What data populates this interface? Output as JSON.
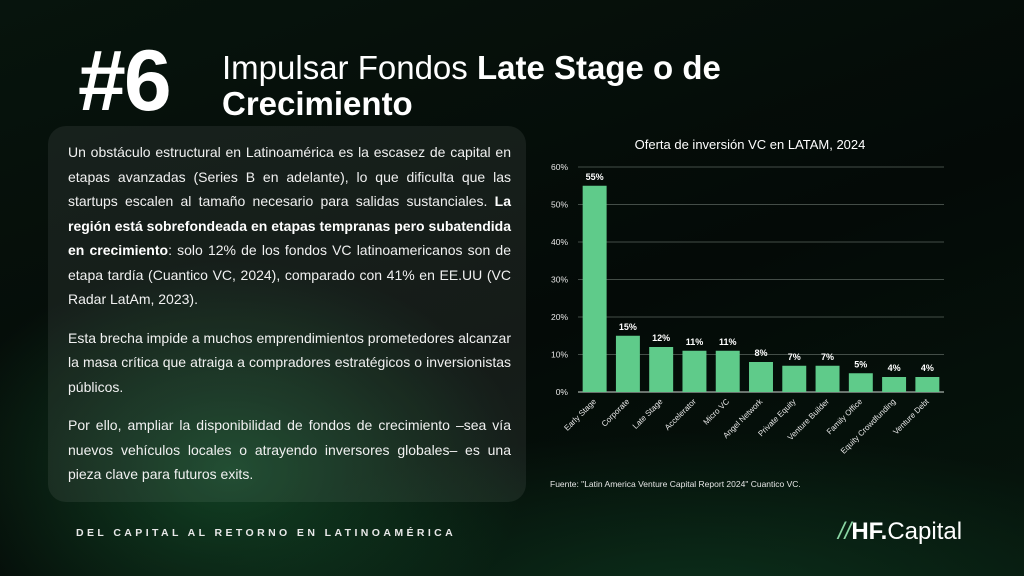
{
  "header": {
    "number": "#6",
    "title_regular": "Impulsar Fondos",
    "title_bold": "Late Stage o de Crecimiento"
  },
  "body": {
    "p1_a": "Un obstáculo estructural en Latinoamérica es la escasez de capital en etapas avanzadas (Series B en adelante), lo que dificulta que las startups escalen al tamaño necesario para salidas sustanciales.",
    "p1_bold": "La región está sobrefondeada en etapas tempranas pero subatendida en crecimiento",
    "p1_b": ": solo 12% de los fondos VC latinoamericanos son de etapa tardía (Cuantico VC, 2024), comparado con 41% en EE.UU (VC Radar LatAm, 2023).",
    "p2": "Esta brecha impide a muchos emprendimientos prometedores alcanzar la masa crítica que atraiga a compradores estratégicos o inversionistas públicos.",
    "p3": "Por ello, ampliar la disponibilidad de fondos de crecimiento –sea vía nuevos vehículos locales o atrayendo inversores globales– es una pieza clave para futuros exits."
  },
  "chart_data": {
    "type": "bar",
    "title": "Oferta de inversión VC en LATAM, 2024",
    "categories": [
      "Early Stage",
      "Corporate",
      "Late Stage",
      "Accelerator",
      "Micro VC",
      "Angel Network",
      "Private Equity",
      "Venture Builder",
      "Family Office",
      "Equity Crowdfunding",
      "Venture Debt"
    ],
    "values": [
      55,
      15,
      12,
      11,
      11,
      8,
      7,
      7,
      5,
      4,
      4
    ],
    "data_labels": [
      "55%",
      "15%",
      "12%",
      "11%",
      "11%",
      "8%",
      "7%",
      "7%",
      "5%",
      "4%",
      "4%"
    ],
    "yticks": [
      0,
      10,
      20,
      30,
      40,
      50,
      60
    ],
    "ytick_labels": [
      "0%",
      "10%",
      "20%",
      "30%",
      "40%",
      "50%",
      "60%"
    ],
    "ylim": [
      0,
      60
    ],
    "grid": true,
    "bar_color": "#5fcb8a",
    "source": "Fuente: \"Latin America Venture Capital Report 2024\" Cuantico VC."
  },
  "footer": {
    "tagline": "DEL CAPITAL AL RETORNO EN LATINOAMÉRICA",
    "logo_slashes": "//",
    "logo_bold": "HF.",
    "logo_regular": "Capital"
  }
}
